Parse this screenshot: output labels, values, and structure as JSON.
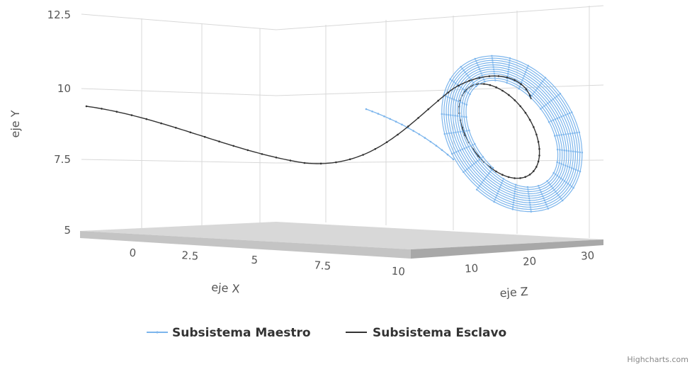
{
  "chart_data": {
    "type": "line3d",
    "title": "",
    "axes": {
      "y": {
        "title": "eje Y",
        "ticks": [
          "5",
          "7.5",
          "10",
          "12.5"
        ],
        "range": [
          5,
          12.5
        ]
      },
      "x": {
        "title": "eje X",
        "ticks": [
          "0",
          "2.5",
          "5",
          "7.5",
          "10"
        ],
        "range": [
          -1.5,
          10
        ]
      },
      "z": {
        "title": "eje Z",
        "ticks": [
          "10",
          "20",
          "30"
        ],
        "range": [
          0,
          30
        ]
      }
    },
    "legend": {
      "position": "bottom-center"
    },
    "grid": true,
    "series": [
      {
        "name": "Subsistema Maestro",
        "color": "#7cb5ec",
        "description_points": [
          {
            "x": 4.0,
            "y": 9.3,
            "z": 8
          },
          {
            "x": 4.7,
            "y": 8.7,
            "z": 9
          },
          {
            "x": 5.6,
            "y": 7.8,
            "z": 11
          }
        ],
        "spiral": {
          "turns": 12,
          "center_y": 8.9,
          "start_amplitude": 1.6,
          "end_amplitude": 2.6
        }
      },
      {
        "name": "Subsistema Esclavo",
        "color": "#333333",
        "points": [
          {
            "x": -1.0,
            "y": 9.3,
            "z": 0
          },
          {
            "x": 1.0,
            "y": 8.8,
            "z": 0
          },
          {
            "x": 3.0,
            "y": 8.1,
            "z": 0
          },
          {
            "x": 5.0,
            "y": 7.6,
            "z": 0
          },
          {
            "x": 6.7,
            "y": 7.45,
            "z": 0
          },
          {
            "x": 8.0,
            "y": 7.8,
            "z": 2
          },
          {
            "x": 9.0,
            "y": 8.7,
            "z": 5
          },
          {
            "x": 10.0,
            "y": 10.1,
            "z": 12
          }
        ],
        "ellipse": {
          "turns": 1,
          "center_y": 8.9
        }
      }
    ]
  },
  "legend_items": [
    {
      "label": "Subsistema Maestro",
      "color": "#7cb5ec"
    },
    {
      "label": "Subsistema Esclavo",
      "color": "#333333"
    }
  ],
  "credits": "Highcharts.com"
}
